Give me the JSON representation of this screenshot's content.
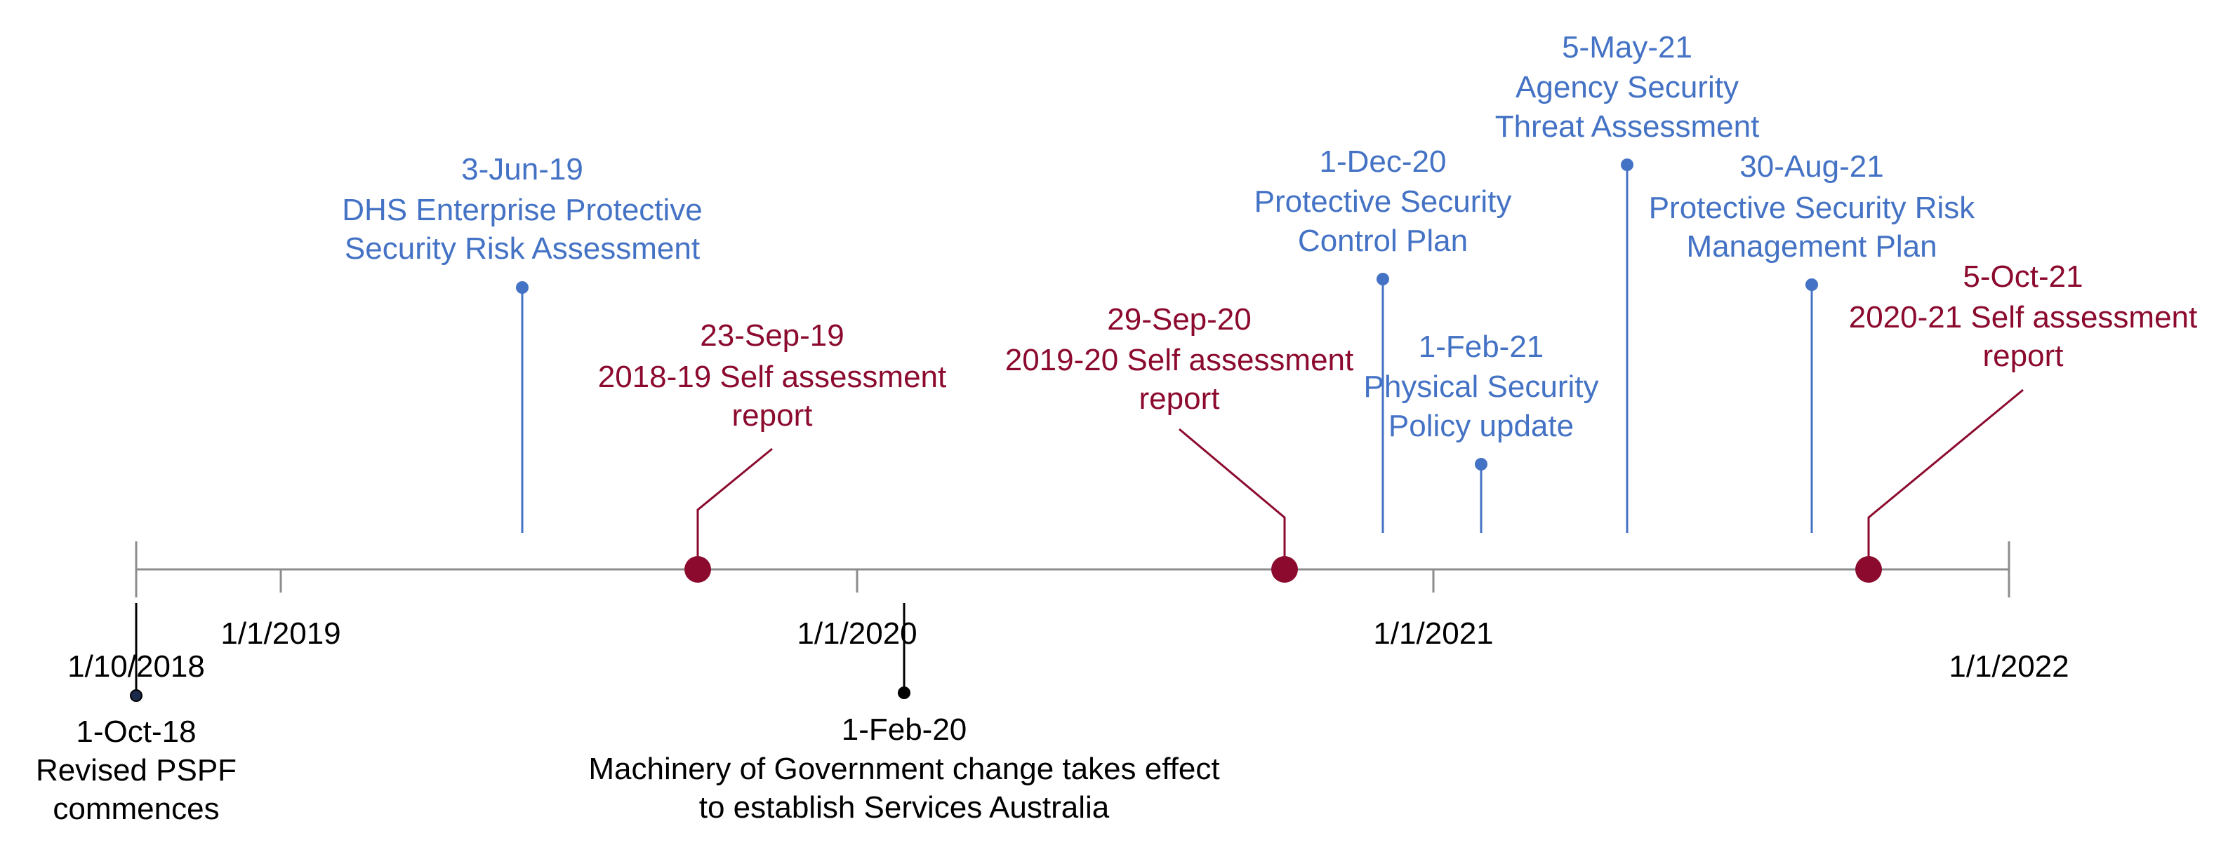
{
  "timeline": {
    "colors": {
      "axis": "#8C8C8C",
      "blue": "#4472C4",
      "red": "#8B0A2E",
      "black": "#000000"
    },
    "axis_ticks": [
      {
        "date": "2018-10-01",
        "label": "1/10/2018"
      },
      {
        "date": "2019-01-01",
        "label": "1/1/2019"
      },
      {
        "date": "2020-01-01",
        "label": "1/1/2020"
      },
      {
        "date": "2021-01-01",
        "label": "1/1/2021"
      },
      {
        "date": "2022-01-01",
        "label": "1/1/2022"
      }
    ],
    "events": [
      {
        "id": "revised-pspf",
        "date": "2018-10-01",
        "color": "black",
        "lines": [
          "1-Oct-18",
          "Revised PSPF",
          "commences"
        ]
      },
      {
        "id": "dhs-risk-assessment",
        "date": "2019-06-03",
        "color": "blue",
        "lines": [
          "3-Jun-19",
          "DHS Enterprise Protective",
          "Security Risk Assessment"
        ]
      },
      {
        "id": "self-assessment-2018-19",
        "date": "2019-09-23",
        "color": "red",
        "lines": [
          "23-Sep-19",
          "2018-19 Self assessment",
          "report"
        ]
      },
      {
        "id": "machinery-of-government",
        "date": "2020-02-01",
        "color": "black",
        "lines": [
          "1-Feb-20",
          "Machinery of Government change takes effect",
          "to establish Services Australia"
        ]
      },
      {
        "id": "self-assessment-2019-20",
        "date": "2020-09-29",
        "color": "red",
        "lines": [
          "29-Sep-20",
          "2019-20 Self assessment",
          "report"
        ]
      },
      {
        "id": "control-plan",
        "date": "2020-12-01",
        "color": "blue",
        "lines": [
          "1-Dec-20",
          "Protective Security",
          "Control Plan"
        ]
      },
      {
        "id": "physical-security-policy",
        "date": "2021-02-01",
        "color": "blue",
        "lines": [
          "1-Feb-21",
          "Physical Security",
          "Policy update"
        ]
      },
      {
        "id": "threat-assessment",
        "date": "2021-05-05",
        "color": "blue",
        "lines": [
          "5-May-21",
          "Agency Security",
          "Threat Assessment"
        ]
      },
      {
        "id": "risk-management-plan",
        "date": "2021-08-30",
        "color": "blue",
        "lines": [
          "30-Aug-21",
          "Protective Security Risk",
          "Management Plan"
        ]
      },
      {
        "id": "self-assessment-2020-21",
        "date": "2021-10-05",
        "color": "red",
        "lines": [
          "5-Oct-21",
          "2020-21 Self assessment",
          "report"
        ]
      }
    ]
  }
}
